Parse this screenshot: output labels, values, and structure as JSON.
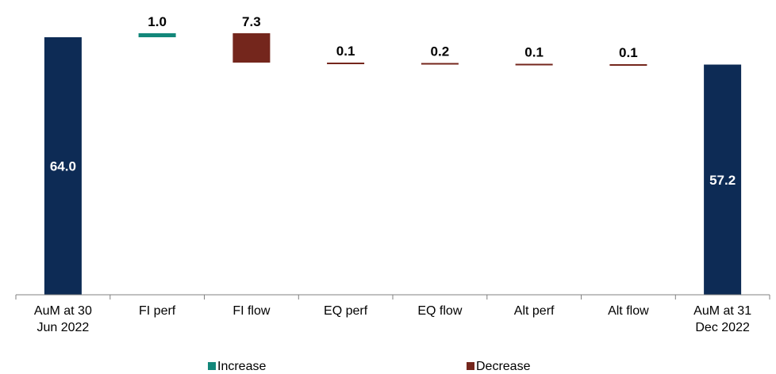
{
  "chart_data": {
    "type": "waterfall",
    "title": "",
    "xlabel": "",
    "ylabel": "",
    "ylim": [
      0,
      75
    ],
    "grid": false,
    "legend_placement": "bottom",
    "categories": [
      [
        "AuM at 30",
        "Jun 2022"
      ],
      [
        "FI perf"
      ],
      [
        "FI flow"
      ],
      [
        "EQ perf"
      ],
      [
        "EQ flow"
      ],
      [
        "Alt perf"
      ],
      [
        "Alt flow"
      ],
      [
        "AuM at 31",
        "Dec 2022"
      ]
    ],
    "steps": [
      {
        "kind": "total",
        "value": 64.0,
        "label": "64.0"
      },
      {
        "kind": "increase",
        "value": 1.0,
        "label": "1.0"
      },
      {
        "kind": "decrease",
        "value": 7.3,
        "label": "7.3"
      },
      {
        "kind": "decrease",
        "value": 0.1,
        "label": "0.1"
      },
      {
        "kind": "decrease",
        "value": 0.2,
        "label": "0.2"
      },
      {
        "kind": "decrease",
        "value": 0.1,
        "label": "0.1"
      },
      {
        "kind": "decrease",
        "value": 0.1,
        "label": "0.1"
      },
      {
        "kind": "total",
        "value": 57.2,
        "label": "57.2"
      }
    ],
    "legend": [
      {
        "key": "increase",
        "label": "Increase"
      },
      {
        "key": "decrease",
        "label": "Decrease"
      }
    ],
    "colors": {
      "total": "#0d2b55",
      "increase": "#13877a",
      "decrease": "#74261c",
      "axis": "#808080",
      "total_label": "#ffffff",
      "delta_label": "#000000"
    }
  }
}
